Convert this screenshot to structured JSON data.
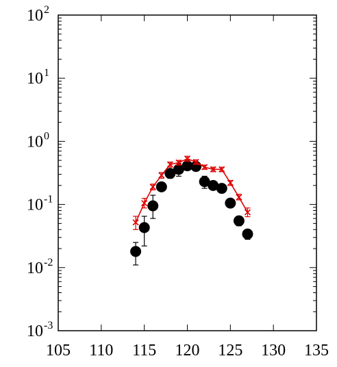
{
  "chart_data": {
    "type": "scatter",
    "title": "",
    "xlabel": "",
    "ylabel": "",
    "xlim": [
      105,
      135
    ],
    "ylim": [
      0.001,
      100
    ],
    "yscale": "log",
    "grid": false,
    "legend": "none",
    "x_ticks": [
      "105",
      "110",
      "115",
      "120",
      "125",
      "130",
      "135"
    ],
    "y_ticks": [
      {
        "base": "10",
        "exp": "2",
        "value": 100
      },
      {
        "base": "10",
        "exp": "1",
        "value": 10
      },
      {
        "base": "10",
        "exp": "0",
        "value": 1
      },
      {
        "base": "10",
        "exp": "-1",
        "value": 0.1
      },
      {
        "base": "10",
        "exp": "-2",
        "value": 0.01
      },
      {
        "base": "10",
        "exp": "-3",
        "value": 0.001
      }
    ],
    "series": [
      {
        "marker": "filled-circle",
        "color": "#000000",
        "line": false,
        "points": [
          {
            "x": 114,
            "y": 0.018,
            "err_lo": 0.011,
            "err_hi": 0.025
          },
          {
            "x": 115,
            "y": 0.043,
            "err_lo": 0.022,
            "err_hi": 0.065
          },
          {
            "x": 116,
            "y": 0.095,
            "err_lo": 0.06,
            "err_hi": 0.14
          },
          {
            "x": 117,
            "y": 0.19,
            "err_lo": 0.165,
            "err_hi": 0.22
          },
          {
            "x": 118,
            "y": 0.31,
            "err_lo": 0.26,
            "err_hi": 0.36
          },
          {
            "x": 119,
            "y": 0.36,
            "err_lo": 0.28,
            "err_hi": 0.45
          },
          {
            "x": 120,
            "y": 0.41,
            "err_lo": 0.35,
            "err_hi": 0.48
          },
          {
            "x": 121,
            "y": 0.4,
            "err_lo": 0.34,
            "err_hi": 0.47
          },
          {
            "x": 122,
            "y": 0.23,
            "err_lo": 0.18,
            "err_hi": 0.28
          },
          {
            "x": 123,
            "y": 0.2,
            "err_lo": 0.17,
            "err_hi": 0.23
          },
          {
            "x": 124,
            "y": 0.18,
            "err_lo": 0.16,
            "err_hi": 0.2
          },
          {
            "x": 125,
            "y": 0.105,
            "err_lo": 0.09,
            "err_hi": 0.12
          },
          {
            "x": 126,
            "y": 0.055,
            "err_lo": 0.046,
            "err_hi": 0.065
          },
          {
            "x": 127,
            "y": 0.034,
            "err_lo": 0.028,
            "err_hi": 0.04
          }
        ]
      },
      {
        "marker": "x-cross",
        "color": "#dd0000",
        "line": true,
        "points": [
          {
            "x": 114,
            "y": 0.052,
            "err_lo": 0.04,
            "err_hi": 0.065
          },
          {
            "x": 115,
            "y": 0.105,
            "err_lo": 0.088,
            "err_hi": 0.125
          },
          {
            "x": 116,
            "y": 0.19,
            "err_lo": 0.17,
            "err_hi": 0.21
          },
          {
            "x": 117,
            "y": 0.29,
            "err_lo": 0.26,
            "err_hi": 0.32
          },
          {
            "x": 118,
            "y": 0.43,
            "err_lo": 0.39,
            "err_hi": 0.47
          },
          {
            "x": 119,
            "y": 0.46,
            "err_lo": 0.42,
            "err_hi": 0.5
          },
          {
            "x": 120,
            "y": 0.53,
            "err_lo": 0.48,
            "err_hi": 0.58
          },
          {
            "x": 121,
            "y": 0.47,
            "err_lo": 0.43,
            "err_hi": 0.51
          },
          {
            "x": 122,
            "y": 0.39,
            "err_lo": 0.36,
            "err_hi": 0.42
          },
          {
            "x": 123,
            "y": 0.36,
            "err_lo": 0.33,
            "err_hi": 0.39
          },
          {
            "x": 124,
            "y": 0.36,
            "err_lo": 0.33,
            "err_hi": 0.39
          },
          {
            "x": 125,
            "y": 0.22,
            "err_lo": 0.2,
            "err_hi": 0.24
          },
          {
            "x": 126,
            "y": 0.13,
            "err_lo": 0.118,
            "err_hi": 0.145
          },
          {
            "x": 127,
            "y": 0.075,
            "err_lo": 0.064,
            "err_hi": 0.088
          }
        ]
      }
    ]
  }
}
